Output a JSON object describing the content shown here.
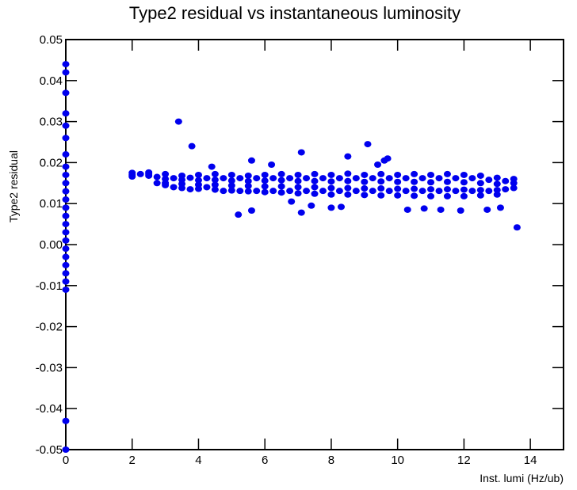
{
  "chart_data": {
    "type": "scatter",
    "title": "Type2 residual  vs instantaneous luminosity",
    "x_label": "Inst. lumi (Hz/ub)",
    "y_label": "Type2 residual",
    "color": "#0000ee",
    "xlim": [
      0,
      15
    ],
    "xticks": [
      0,
      2,
      4,
      6,
      8,
      10,
      12,
      14
    ],
    "ylim": [
      -0.05,
      0.05
    ],
    "yticks": [
      -0.05,
      -0.04,
      -0.03,
      -0.02,
      -0.01,
      {
        "value": 0,
        "label": "0.00"
      },
      0.01,
      0.02,
      0.03,
      0.04,
      0.05
    ],
    "x": [
      0,
      0,
      0,
      0,
      0,
      0,
      0,
      0,
      0,
      0,
      0,
      0,
      0,
      0,
      0,
      0,
      0,
      0,
      0,
      0,
      0,
      0,
      0,
      0,
      0,
      2,
      2,
      2,
      2.25,
      2.5,
      2.5,
      2.5,
      2.75,
      2.75,
      3,
      3,
      3,
      3,
      3.25,
      3.25,
      3.5,
      3.5,
      3.5,
      3.5,
      3.75,
      3.75,
      4,
      4,
      4,
      4,
      4.25,
      4.25,
      4.5,
      4.5,
      4.5,
      4.5,
      4.75,
      4.75,
      5,
      5,
      5,
      5,
      5.25,
      5.25,
      5.5,
      5.5,
      5.5,
      5.5,
      5.75,
      5.75,
      6,
      6,
      6,
      6,
      6.25,
      6.25,
      6.5,
      6.5,
      6.5,
      6.5,
      6.75,
      6.75,
      7,
      7,
      7,
      7,
      7.25,
      7.25,
      7.5,
      7.5,
      7.5,
      7.5,
      7.75,
      7.75,
      8,
      8,
      8,
      8,
      8.25,
      8.25,
      8.5,
      8.5,
      8.5,
      8.5,
      8.75,
      8.75,
      9,
      9,
      9,
      9,
      9.25,
      9.25,
      9.5,
      9.5,
      9.5,
      9.5,
      9.75,
      9.75,
      10,
      10,
      10,
      10,
      10.25,
      10.25,
      10.5,
      10.5,
      10.5,
      10.5,
      10.75,
      10.75,
      11,
      11,
      11,
      11,
      11.25,
      11.25,
      11.5,
      11.5,
      11.5,
      11.5,
      11.75,
      11.75,
      12,
      12,
      12,
      12,
      12.25,
      12.25,
      12.5,
      12.5,
      12.5,
      12.5,
      12.75,
      12.75,
      13,
      13,
      13,
      13,
      13.25,
      13.25,
      13.5,
      13.5,
      13.5,
      3.4,
      3.8,
      4.4,
      5.6,
      6.2,
      7.1,
      8.5,
      9.1,
      9.6,
      9.7,
      9.4,
      5.2,
      5.6,
      7.1,
      7.4,
      8.3,
      10.3,
      11.3,
      11.9,
      12.7,
      13.1,
      13.6,
      8.0,
      10.8,
      6.8
    ],
    "values": [
      0.044,
      0.042,
      0.037,
      0.032,
      0.029,
      0.026,
      0.022,
      0.019,
      0.017,
      0.015,
      0.013,
      0.011,
      0.009,
      0.007,
      0.005,
      0.003,
      0.001,
      -0.001,
      -0.003,
      -0.005,
      -0.007,
      -0.009,
      -0.011,
      -0.043,
      -0.05,
      0.0175,
      0.017,
      0.0166,
      0.0172,
      0.0176,
      0.0172,
      0.0168,
      0.0165,
      0.015,
      0.0172,
      0.016,
      0.015,
      0.0145,
      0.0162,
      0.014,
      0.0168,
      0.0158,
      0.0148,
      0.0138,
      0.0163,
      0.0135,
      0.017,
      0.0157,
      0.0146,
      0.0136,
      0.0162,
      0.014,
      0.0172,
      0.0158,
      0.0146,
      0.0134,
      0.0162,
      0.0131,
      0.017,
      0.0156,
      0.0144,
      0.0132,
      0.0162,
      0.0131,
      0.0168,
      0.0155,
      0.0143,
      0.013,
      0.0162,
      0.0131,
      0.017,
      0.0156,
      0.0142,
      0.0128,
      0.0162,
      0.0131,
      0.0172,
      0.0157,
      0.0142,
      0.0127,
      0.0162,
      0.0131,
      0.017,
      0.0155,
      0.014,
      0.0125,
      0.0162,
      0.0131,
      0.0172,
      0.0155,
      0.014,
      0.0124,
      0.0162,
      0.0131,
      0.017,
      0.0154,
      0.0138,
      0.0122,
      0.0162,
      0.0131,
      0.0173,
      0.0155,
      0.0138,
      0.0122,
      0.0162,
      0.0131,
      0.017,
      0.0153,
      0.0137,
      0.0121,
      0.0162,
      0.0131,
      0.0172,
      0.0154,
      0.0137,
      0.012,
      0.0162,
      0.0131,
      0.017,
      0.0153,
      0.0136,
      0.012,
      0.0162,
      0.0131,
      0.0172,
      0.0153,
      0.0136,
      0.0119,
      0.0162,
      0.0131,
      0.017,
      0.0152,
      0.0135,
      0.0118,
      0.0162,
      0.0131,
      0.0172,
      0.0153,
      0.0135,
      0.0118,
      0.0162,
      0.0131,
      0.017,
      0.0152,
      0.0134,
      0.0118,
      0.0162,
      0.0131,
      0.0168,
      0.015,
      0.0133,
      0.012,
      0.0158,
      0.0131,
      0.0163,
      0.0148,
      0.0133,
      0.0122,
      0.0155,
      0.0135,
      0.016,
      0.015,
      0.0138,
      0.03,
      0.024,
      0.019,
      0.0205,
      0.0195,
      0.0225,
      0.0215,
      0.0245,
      0.0205,
      0.021,
      0.0195,
      0.0073,
      0.0083,
      0.0078,
      0.0095,
      0.0092,
      0.0085,
      0.0085,
      0.0083,
      0.0085,
      0.009,
      0.0042,
      0.009,
      0.0088,
      0.0105
    ]
  }
}
